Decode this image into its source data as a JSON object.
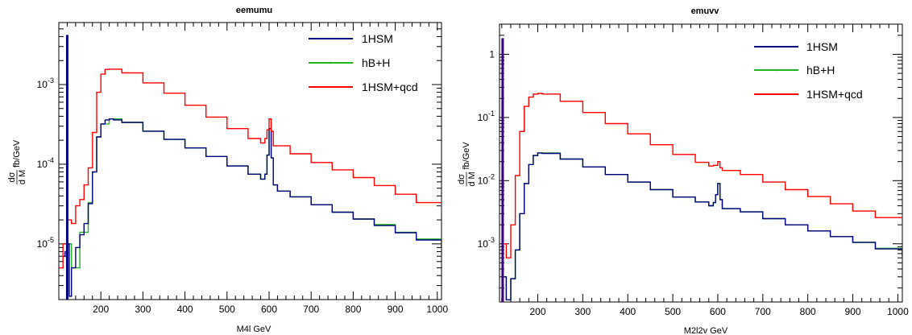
{
  "chart_data": [
    {
      "type": "line",
      "title": "eemumu",
      "xlabel": "M4l GeV",
      "ylabel": "dσ/dM fb/GeV",
      "ylabel_parts": {
        "num": "dσ",
        "den": "d M",
        "unit": "fb/GeV"
      },
      "xlim": [
        100,
        1010
      ],
      "ylim": [
        2e-06,
        0.006
      ],
      "yscale": "log",
      "xticks": [
        200,
        300,
        400,
        500,
        600,
        700,
        800,
        900,
        1000
      ],
      "yticks": [
        {
          "value": 1e-05,
          "base": "10",
          "exp": "-5"
        },
        {
          "value": 0.0001,
          "base": "10",
          "exp": "-4"
        },
        {
          "value": 0.001,
          "base": "10",
          "exp": "-3"
        }
      ],
      "legend_position": "top-right",
      "series": [
        {
          "name": "1HSM",
          "color": "#00007f",
          "points": [
            [
              110,
              7e-06
            ],
            [
              115,
              8e-06
            ],
            [
              120,
              1e-05
            ],
            [
              125,
              2.2e-06
            ],
            [
              130,
              5e-06
            ],
            [
              140,
              9e-06
            ],
            [
              150,
              1.3e-05
            ],
            [
              160,
              1.8e-05
            ],
            [
              170,
              3.2e-05
            ],
            [
              180,
              8e-05
            ],
            [
              190,
              0.00022
            ],
            [
              200,
              0.00032
            ],
            [
              210,
              0.00036
            ],
            [
              220,
              0.00037
            ],
            [
              230,
              0.00036
            ],
            [
              250,
              0.000335
            ],
            [
              300,
              0.00026
            ],
            [
              350,
              0.000205
            ],
            [
              400,
              0.00016
            ],
            [
              450,
              0.000125
            ],
            [
              500,
              9.5e-05
            ],
            [
              550,
              7.5e-05
            ],
            [
              580,
              6.5e-05
            ],
            [
              590,
              7.5e-05
            ],
            [
              595,
              0.00013
            ],
            [
              600,
              0.00028
            ],
            [
              605,
              0.00012
            ],
            [
              610,
              5.5e-05
            ],
            [
              620,
              4.6e-05
            ],
            [
              650,
              3.9e-05
            ],
            [
              700,
              3.1e-05
            ],
            [
              750,
              2.5e-05
            ],
            [
              800,
              2.05e-05
            ],
            [
              850,
              1.7e-05
            ],
            [
              900,
              1.38e-05
            ],
            [
              950,
              1.12e-05
            ],
            [
              1010,
              9e-06
            ]
          ]
        },
        {
          "name": "hB+H",
          "color": "#22b522",
          "points": [
            [
              110,
              7e-06
            ],
            [
              120,
              1e-05
            ],
            [
              130,
              5e-06
            ],
            [
              150,
              1.4e-05
            ],
            [
              170,
              3.3e-05
            ],
            [
              180,
              8e-05
            ],
            [
              190,
              0.00022
            ],
            [
              200,
              0.00032
            ],
            [
              220,
              0.00037
            ],
            [
              250,
              0.000335
            ],
            [
              300,
              0.00026
            ],
            [
              350,
              0.000205
            ],
            [
              400,
              0.00016
            ],
            [
              450,
              0.000125
            ],
            [
              500,
              9.5e-05
            ],
            [
              550,
              7.5e-05
            ],
            [
              580,
              6.5e-05
            ],
            [
              590,
              7.5e-05
            ],
            [
              595,
              0.00013
            ],
            [
              600,
              0.00028
            ],
            [
              605,
              0.00012
            ],
            [
              610,
              5.5e-05
            ],
            [
              620,
              4.6e-05
            ],
            [
              650,
              3.9e-05
            ],
            [
              700,
              3.1e-05
            ],
            [
              750,
              2.5e-05
            ],
            [
              800,
              2.05e-05
            ],
            [
              850,
              1.75e-05
            ],
            [
              900,
              1.4e-05
            ],
            [
              950,
              1.15e-05
            ],
            [
              1010,
              9.2e-06
            ]
          ]
        },
        {
          "name": "1HSM+qcd",
          "color": "#ff0000",
          "points": [
            [
              100,
              5e-06
            ],
            [
              110,
              1e-05
            ],
            [
              120,
              2e-05
            ],
            [
              130,
              1.8e-05
            ],
            [
              140,
              3e-05
            ],
            [
              150,
              3.6e-05
            ],
            [
              160,
              5.5e-05
            ],
            [
              170,
              9e-05
            ],
            [
              180,
              0.00025
            ],
            [
              190,
              0.0008
            ],
            [
              200,
              0.00135
            ],
            [
              210,
              0.00155
            ],
            [
              220,
              0.00156
            ],
            [
              250,
              0.0014
            ],
            [
              300,
              0.00105
            ],
            [
              350,
              0.00078
            ],
            [
              400,
              0.00055
            ],
            [
              450,
              0.00039
            ],
            [
              500,
              0.00028
            ],
            [
              550,
              0.00021
            ],
            [
              580,
              0.000185
            ],
            [
              590,
              0.00021
            ],
            [
              595,
              0.00027
            ],
            [
              600,
              0.00037
            ],
            [
              605,
              0.00026
            ],
            [
              610,
              0.00017
            ],
            [
              650,
              0.000135
            ],
            [
              700,
              0.000105
            ],
            [
              750,
              8.5e-05
            ],
            [
              800,
              6.8e-05
            ],
            [
              850,
              5.4e-05
            ],
            [
              900,
              4.2e-05
            ],
            [
              950,
              3.3e-05
            ],
            [
              1010,
              2.4e-05
            ]
          ]
        }
      ],
      "spike": {
        "x": 120,
        "y": 0.0042,
        "color": "#00007f"
      }
    },
    {
      "type": "line",
      "title": "emuvv",
      "xlabel": "M2l2v GeV",
      "ylabel": "dσ/dM fb/GeV",
      "ylabel_parts": {
        "num": "dσ",
        "den": "d M",
        "unit": "fb/GeV"
      },
      "xlim": [
        115,
        1010
      ],
      "ylim": [
        0.00012,
        3
      ],
      "yscale": "log",
      "xticks": [
        200,
        300,
        400,
        500,
        600,
        700,
        800,
        900,
        1000
      ],
      "yticks": [
        {
          "value": 0.001,
          "base": "10",
          "exp": "-3"
        },
        {
          "value": 0.01,
          "base": "10",
          "exp": "-2"
        },
        {
          "value": 0.1,
          "base": "10",
          "exp": "-1"
        },
        {
          "value": 1,
          "base": "1",
          "exp": ""
        }
      ],
      "legend_position": "top-right",
      "series": [
        {
          "name": "1HSM",
          "color": "#00007f",
          "points": [
            [
              125,
              0.0003
            ],
            [
              130,
              0.00013
            ],
            [
              140,
              0.00028
            ],
            [
              150,
              0.0008
            ],
            [
              160,
              0.003
            ],
            [
              170,
              0.009
            ],
            [
              180,
              0.018
            ],
            [
              190,
              0.025
            ],
            [
              200,
              0.0275
            ],
            [
              210,
              0.027
            ],
            [
              250,
              0.022
            ],
            [
              300,
              0.0165
            ],
            [
              350,
              0.0125
            ],
            [
              400,
              0.0095
            ],
            [
              450,
              0.0072
            ],
            [
              500,
              0.0055
            ],
            [
              550,
              0.0046
            ],
            [
              580,
              0.004
            ],
            [
              590,
              0.0045
            ],
            [
              595,
              0.006
            ],
            [
              600,
              0.009
            ],
            [
              605,
              0.005
            ],
            [
              610,
              0.0036
            ],
            [
              650,
              0.0032
            ],
            [
              700,
              0.0025
            ],
            [
              750,
              0.002
            ],
            [
              800,
              0.0016
            ],
            [
              850,
              0.0013
            ],
            [
              900,
              0.00105
            ],
            [
              950,
              0.00083
            ],
            [
              1010,
              0.00063
            ]
          ]
        },
        {
          "name": "hB+H",
          "color": "#22b522",
          "points": [
            [
              125,
              0.0003
            ],
            [
              130,
              0.00013
            ],
            [
              140,
              0.00028
            ],
            [
              150,
              0.0008
            ],
            [
              160,
              0.003
            ],
            [
              170,
              0.009
            ],
            [
              180,
              0.018
            ],
            [
              190,
              0.025
            ],
            [
              200,
              0.0275
            ],
            [
              250,
              0.022
            ],
            [
              300,
              0.0165
            ],
            [
              350,
              0.0125
            ],
            [
              400,
              0.0095
            ],
            [
              450,
              0.0072
            ],
            [
              500,
              0.0055
            ],
            [
              550,
              0.0046
            ],
            [
              580,
              0.004
            ],
            [
              590,
              0.0045
            ],
            [
              595,
              0.006
            ],
            [
              600,
              0.009
            ],
            [
              605,
              0.005
            ],
            [
              610,
              0.0036
            ],
            [
              650,
              0.0032
            ],
            [
              700,
              0.0025
            ],
            [
              750,
              0.002
            ],
            [
              800,
              0.0016
            ],
            [
              850,
              0.0013
            ],
            [
              900,
              0.00106
            ],
            [
              950,
              0.00085
            ],
            [
              1010,
              0.00064
            ]
          ]
        },
        {
          "name": "1HSM+qcd",
          "color": "#ff0000",
          "points": [
            [
              125,
              0.001
            ],
            [
              130,
              0.0006
            ],
            [
              140,
              0.002
            ],
            [
              150,
              0.012
            ],
            [
              160,
              0.06
            ],
            [
              170,
              0.15
            ],
            [
              180,
              0.21
            ],
            [
              190,
              0.235
            ],
            [
              200,
              0.24
            ],
            [
              210,
              0.235
            ],
            [
              250,
              0.18
            ],
            [
              300,
              0.12
            ],
            [
              350,
              0.08
            ],
            [
              400,
              0.055
            ],
            [
              450,
              0.037
            ],
            [
              500,
              0.026
            ],
            [
              550,
              0.0195
            ],
            [
              580,
              0.017
            ],
            [
              590,
              0.0175
            ],
            [
              600,
              0.02
            ],
            [
              605,
              0.016
            ],
            [
              610,
              0.0145
            ],
            [
              650,
              0.0125
            ],
            [
              700,
              0.0095
            ],
            [
              750,
              0.0072
            ],
            [
              800,
              0.0056
            ],
            [
              850,
              0.0043
            ],
            [
              900,
              0.0033
            ],
            [
              950,
              0.0026
            ],
            [
              1010,
              0.002
            ]
          ]
        }
      ],
      "spike": {
        "x": 122,
        "y": 1.8,
        "color": "#3a0078"
      }
    }
  ]
}
